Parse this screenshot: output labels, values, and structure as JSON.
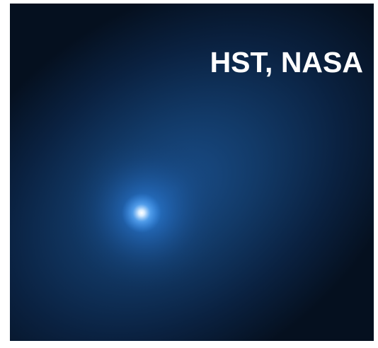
{
  "image": {
    "credit": "HST, NASA"
  }
}
